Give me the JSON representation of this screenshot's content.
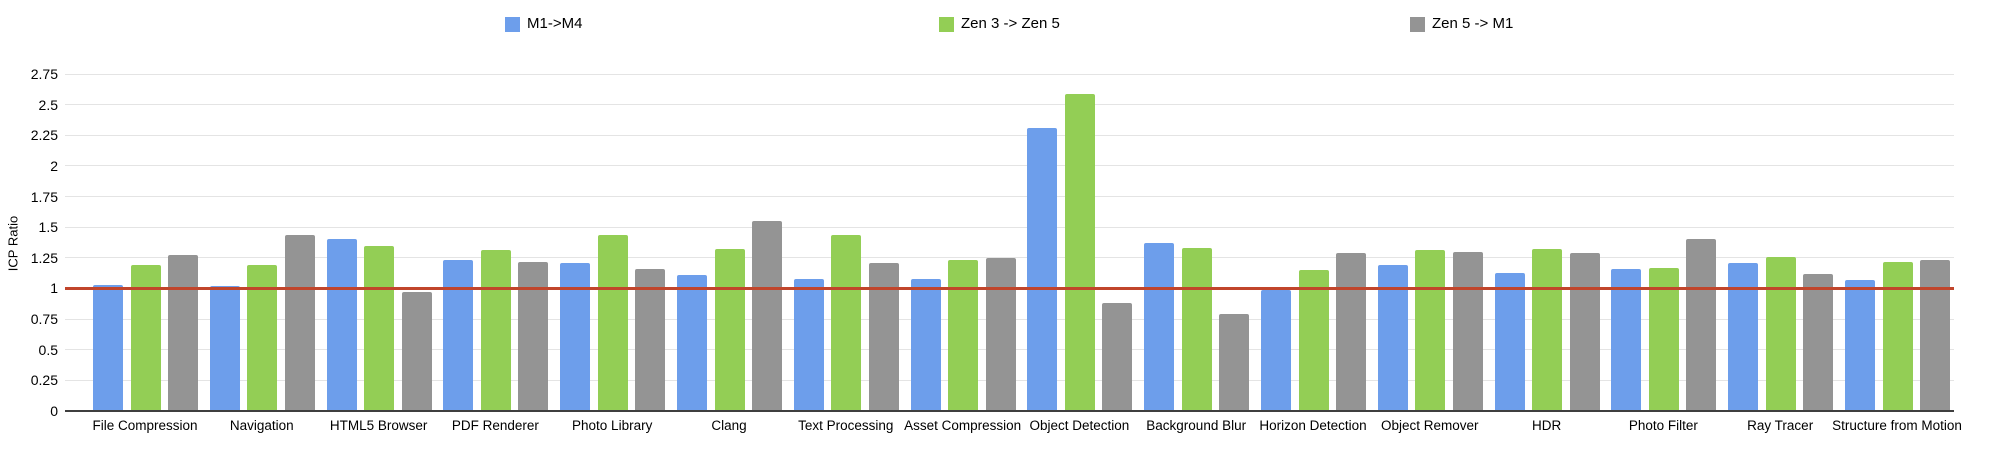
{
  "chart_data": {
    "type": "bar",
    "title": "",
    "xlabel": "",
    "ylabel": "ICP Ratio",
    "ylim": [
      0,
      2.75
    ],
    "yticks": [
      0,
      0.25,
      0.5,
      0.75,
      1,
      1.25,
      1.5,
      1.75,
      2,
      2.25,
      2.5,
      2.75
    ],
    "ytick_labels": [
      "0",
      "0.25",
      "0.5",
      "0.75",
      "1",
      "1.25",
      "1.5",
      "1.75",
      "2",
      "2.25",
      "2.5",
      "2.75"
    ],
    "grid": true,
    "legend_position": "top",
    "reference_line": {
      "value": 1,
      "color": "#c1452b"
    },
    "categories": [
      "File Compression",
      "Navigation",
      "HTML5 Browser",
      "PDF Renderer",
      "Photo Library",
      "Clang",
      "Text Processing",
      "Asset Compression",
      "Object Detection",
      "Background Blur",
      "Horizon Detection",
      "Object Remover",
      "HDR",
      "Photo Filter",
      "Ray Tracer",
      "Structure from Motion"
    ],
    "series": [
      {
        "name": "M1->M4",
        "color": "#6d9eeb",
        "values": [
          1.03,
          1.02,
          1.4,
          1.23,
          1.21,
          1.11,
          1.08,
          1.08,
          2.31,
          1.37,
          0.99,
          1.19,
          1.13,
          1.16,
          1.21,
          1.07
        ]
      },
      {
        "name": "Zen 3 -> Zen 5",
        "color": "#93ce55",
        "values": [
          1.19,
          1.19,
          1.35,
          1.31,
          1.44,
          1.32,
          1.44,
          1.23,
          2.59,
          1.33,
          1.15,
          1.31,
          1.32,
          1.17,
          1.26,
          1.22
        ]
      },
      {
        "name": "Zen 5 -> M1",
        "color": "#949494",
        "values": [
          1.27,
          1.44,
          0.97,
          1.22,
          1.16,
          1.55,
          1.21,
          1.25,
          0.88,
          0.79,
          1.29,
          1.3,
          1.29,
          1.4,
          1.12,
          1.23
        ]
      }
    ],
    "colors": {
      "gridline": "#e4e4e4",
      "axis_baseline": "#3f3f3f",
      "text": "#000000"
    }
  }
}
